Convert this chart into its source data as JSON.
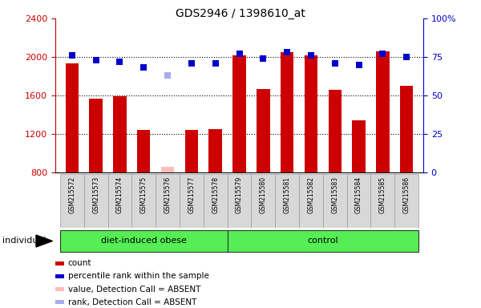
{
  "title": "GDS2946 / 1398610_at",
  "samples": [
    "GSM215572",
    "GSM215573",
    "GSM215574",
    "GSM215575",
    "GSM215576",
    "GSM215577",
    "GSM215578",
    "GSM215579",
    "GSM215580",
    "GSM215581",
    "GSM215582",
    "GSM215583",
    "GSM215584",
    "GSM215585",
    "GSM215586"
  ],
  "bar_values": [
    1930,
    1570,
    1590,
    1240,
    null,
    1240,
    1250,
    2020,
    1670,
    2050,
    2020,
    1660,
    1340,
    2060,
    1700
  ],
  "bar_color": "#cc0000",
  "absent_bar_value": 860,
  "absent_bar_color": "#ffbbbb",
  "absent_bar_index": 4,
  "rank_values": [
    76,
    73,
    72,
    68,
    null,
    71,
    71,
    77,
    74,
    78,
    76,
    71,
    70,
    77,
    75
  ],
  "absent_rank_value": 63,
  "absent_rank_color": "#aaaaee",
  "absent_rank_index": 4,
  "rank_color": "#0000cc",
  "ylim_left": [
    800,
    2400
  ],
  "ylim_right": [
    0,
    100
  ],
  "yticks_left": [
    800,
    1200,
    1600,
    2000,
    2400
  ],
  "yticks_right": [
    0,
    25,
    50,
    75,
    100
  ],
  "bar_width": 0.55,
  "marker_size": 6,
  "diet_indices": [
    0,
    1,
    2,
    3,
    4,
    5,
    6
  ],
  "ctrl_indices": [
    7,
    8,
    9,
    10,
    11,
    12,
    13,
    14
  ],
  "group_box_color": "#55ee55",
  "sample_box_color": "#d8d8d8",
  "legend_items": [
    {
      "label": "count",
      "color": "#cc0000"
    },
    {
      "label": "percentile rank within the sample",
      "color": "#0000cc"
    },
    {
      "label": "value, Detection Call = ABSENT",
      "color": "#ffbbbb"
    },
    {
      "label": "rank, Detection Call = ABSENT",
      "color": "#aaaaee"
    }
  ]
}
